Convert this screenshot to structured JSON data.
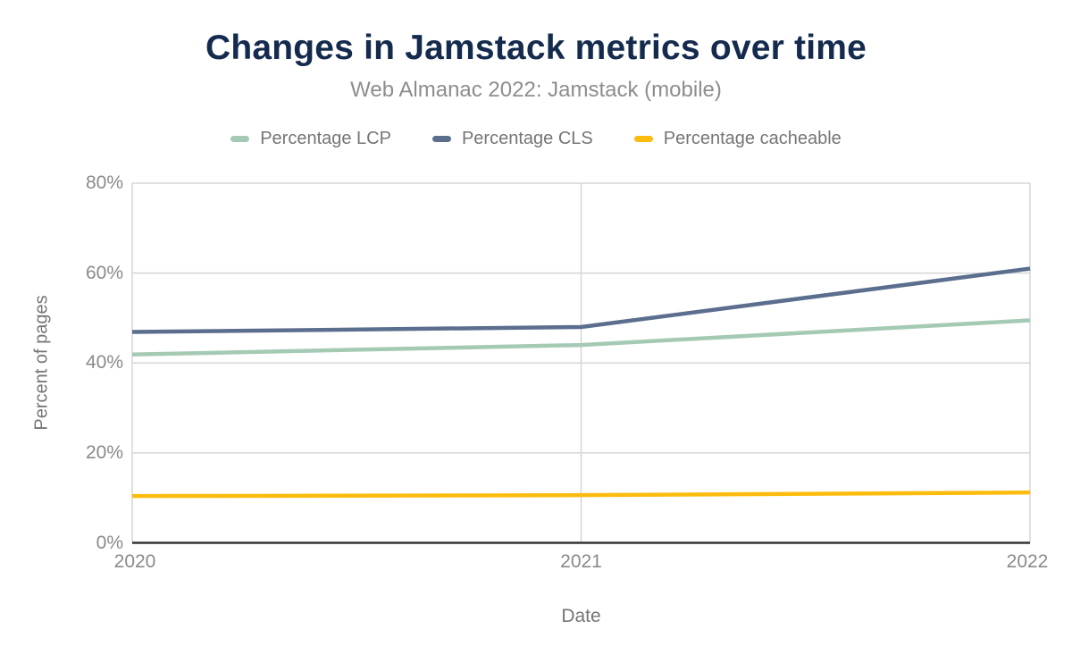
{
  "title": "Changes in Jamstack metrics over time",
  "subtitle": "Web Almanac 2022: Jamstack (mobile)",
  "colors": {
    "background": "#ffffff",
    "title": "#152b4e",
    "subtitle": "#8d8d8d",
    "tick_text": "#8a8a8a",
    "axis_title_text": "#757575",
    "gridline": "#d6d6d6",
    "axis_line": "#333333"
  },
  "chart_data": {
    "type": "line",
    "x": [
      "2020",
      "2021",
      "2022"
    ],
    "series": [
      {
        "name": "Percentage LCP",
        "color": "#a5cab4",
        "values": [
          41.9,
          44.0,
          49.5
        ]
      },
      {
        "name": "Percentage CLS",
        "color": "#5b6e8e",
        "values": [
          46.9,
          48.0,
          61.0
        ]
      },
      {
        "name": "Percentage cacheable",
        "color": "#fbbc0e",
        "values": [
          10.4,
          10.6,
          11.2
        ]
      }
    ],
    "xlabel": "Date",
    "ylabel": "Percent of pages",
    "ylim": [
      0,
      80
    ],
    "y_ticks": [
      "80%",
      "60%",
      "40%",
      "20%",
      "0%"
    ],
    "grid": true,
    "legend_position": "top"
  }
}
